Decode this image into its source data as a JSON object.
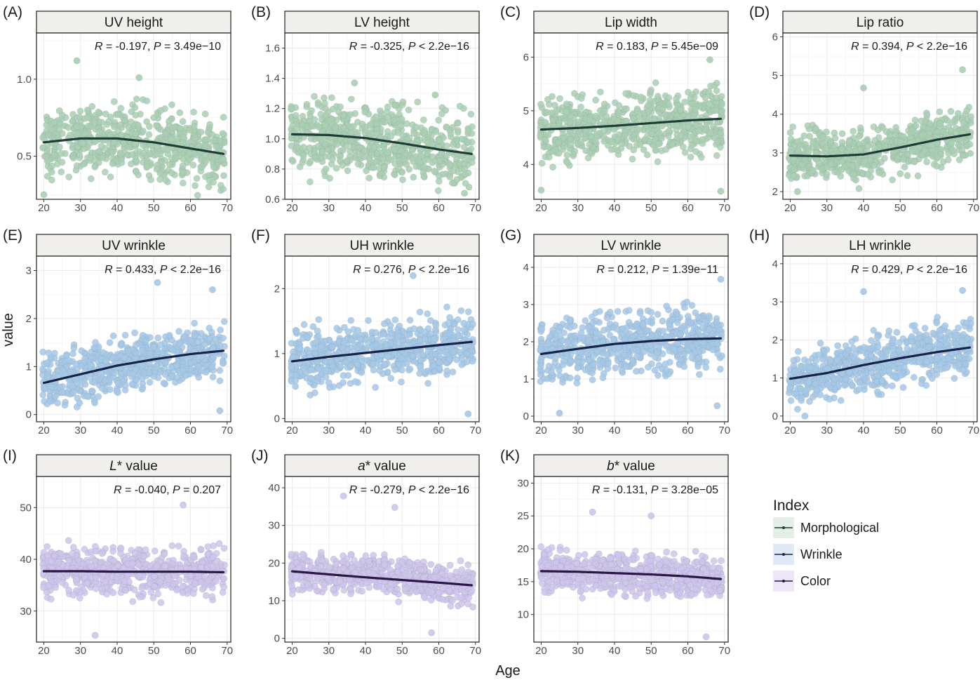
{
  "figure": {
    "xlabel": "Age",
    "ylabel": "value"
  },
  "legend": {
    "title": "Index",
    "entries": [
      {
        "label": "Morphological",
        "point_color": "#a9cfb1",
        "line_color": "#1f3d36",
        "box_color": "#e4efe6"
      },
      {
        "label": "Wrinkle",
        "point_color": "#a5c8e8",
        "line_color": "#15224a",
        "box_color": "#dfeaf6"
      },
      {
        "label": "Color",
        "point_color": "#cfc4ec",
        "line_color": "#2a1745",
        "box_color": "#ece6f8"
      }
    ]
  },
  "chart_data": [
    {
      "type": "scatter",
      "tag": "(A)",
      "title": "UV height",
      "group": "Morphological",
      "xlim": [
        18,
        71
      ],
      "ylim": [
        0.22,
        1.3
      ],
      "yticks": [
        0.5,
        1.0
      ],
      "yticklabels": [
        "0.5",
        "1.0"
      ],
      "xticks": [
        20,
        30,
        40,
        50,
        60,
        70
      ],
      "stat": {
        "r": "-0.197",
        "p": "3.49e−10",
        "p_op": "="
      },
      "smooth": {
        "x": [
          20,
          30,
          40,
          50,
          60,
          69
        ],
        "y": [
          0.59,
          0.615,
          0.615,
          0.59,
          0.55,
          0.515
        ]
      },
      "points": {
        "n": 650,
        "x_range": [
          20,
          69
        ],
        "center": [
          0.59,
          0.615,
          0.615,
          0.59,
          0.55,
          0.515
        ],
        "spread": 0.2
      },
      "outliers": [
        [
          29,
          1.12
        ],
        [
          46,
          1.01
        ],
        [
          20,
          0.25
        ]
      ]
    },
    {
      "type": "scatter",
      "tag": "(B)",
      "title": "LV height",
      "group": "Morphological",
      "xlim": [
        18,
        71
      ],
      "ylim": [
        0.6,
        1.7
      ],
      "yticks": [
        0.6,
        0.8,
        1.0,
        1.2,
        1.4,
        1.6
      ],
      "yticklabels": [
        "0.6",
        "0.8",
        "1.0",
        "1.2",
        "1.4",
        "1.6"
      ],
      "xticks": [
        20,
        30,
        40,
        50,
        60,
        70
      ],
      "stat": {
        "r": "-0.325",
        "p": "2.2e−16",
        "p_op": "<"
      },
      "smooth": {
        "x": [
          20,
          30,
          40,
          50,
          60,
          69
        ],
        "y": [
          1.03,
          1.025,
          1.005,
          0.97,
          0.93,
          0.9
        ]
      },
      "points": {
        "n": 650,
        "x_range": [
          20,
          69
        ],
        "center": [
          1.03,
          1.025,
          1.005,
          0.97,
          0.93,
          0.9
        ],
        "spread": 0.21
      },
      "outliers": [
        [
          37,
          1.37
        ],
        [
          59,
          1.29
        ],
        [
          67,
          0.64
        ]
      ]
    },
    {
      "type": "scatter",
      "tag": "(C)",
      "title": "Lip width",
      "group": "Morphological",
      "xlim": [
        18,
        71
      ],
      "ylim": [
        3.35,
        6.45
      ],
      "yticks": [
        4,
        5,
        6
      ],
      "yticklabels": [
        "4",
        "5",
        "6"
      ],
      "xticks": [
        20,
        30,
        40,
        50,
        60,
        70
      ],
      "stat": {
        "r": "0.183",
        "p": "5.45e−09",
        "p_op": "="
      },
      "smooth": {
        "x": [
          20,
          30,
          40,
          50,
          60,
          69
        ],
        "y": [
          4.65,
          4.68,
          4.72,
          4.77,
          4.82,
          4.85
        ]
      },
      "points": {
        "n": 650,
        "x_range": [
          20,
          69
        ],
        "center": [
          4.65,
          4.68,
          4.72,
          4.77,
          4.82,
          4.85
        ],
        "spread": 0.55
      },
      "outliers": [
        [
          66,
          5.95
        ],
        [
          20,
          3.52
        ],
        [
          69,
          3.5
        ]
      ]
    },
    {
      "type": "scatter",
      "tag": "(D)",
      "title": "Lip ratio",
      "group": "Morphological",
      "xlim": [
        18,
        71
      ],
      "ylim": [
        1.8,
        6.1
      ],
      "yticks": [
        2,
        3,
        4,
        5,
        6
      ],
      "yticklabels": [
        "2",
        "3",
        "4",
        "5",
        "6"
      ],
      "xticks": [
        20,
        30,
        40,
        50,
        60,
        70
      ],
      "stat": {
        "r": "0.394",
        "p": "2.2e−16",
        "p_op": "<"
      },
      "smooth": {
        "x": [
          20,
          30,
          40,
          50,
          60,
          69
        ],
        "y": [
          2.93,
          2.91,
          2.96,
          3.14,
          3.34,
          3.48
        ]
      },
      "points": {
        "n": 650,
        "x_range": [
          20,
          69
        ],
        "center": [
          2.93,
          2.91,
          2.96,
          3.14,
          3.34,
          3.48
        ],
        "spread": 0.6
      },
      "outliers": [
        [
          67,
          5.15
        ],
        [
          40,
          4.68
        ],
        [
          22,
          2.0
        ]
      ]
    },
    {
      "type": "scatter",
      "tag": "(E)",
      "title": "UV wrinkle",
      "group": "Wrinkle",
      "xlim": [
        18,
        71
      ],
      "ylim": [
        -0.15,
        3.3
      ],
      "yticks": [
        0,
        1,
        2,
        3
      ],
      "yticklabels": [
        "0",
        "1",
        "2",
        "3"
      ],
      "xticks": [
        20,
        30,
        40,
        50,
        60,
        70
      ],
      "stat": {
        "r": "0.433",
        "p": "2.2e−16",
        "p_op": "<"
      },
      "smooth": {
        "x": [
          20,
          30,
          40,
          50,
          60,
          69
        ],
        "y": [
          0.66,
          0.84,
          1.02,
          1.15,
          1.26,
          1.33
        ]
      },
      "points": {
        "n": 650,
        "x_range": [
          20,
          69
        ],
        "center": [
          0.66,
          0.84,
          1.02,
          1.15,
          1.26,
          1.33
        ],
        "spread": 0.52
      },
      "outliers": [
        [
          51,
          2.75
        ],
        [
          66,
          2.6
        ],
        [
          68,
          0.08
        ]
      ]
    },
    {
      "type": "scatter",
      "tag": "(F)",
      "title": "UH wrinkle",
      "group": "Wrinkle",
      "xlim": [
        18,
        71
      ],
      "ylim": [
        -0.05,
        2.5
      ],
      "yticks": [
        0,
        1,
        2
      ],
      "yticklabels": [
        "0",
        "1",
        "2"
      ],
      "xticks": [
        20,
        30,
        40,
        50,
        60,
        70
      ],
      "stat": {
        "r": "0.276",
        "p": "2.2e−16",
        "p_op": "<"
      },
      "smooth": {
        "x": [
          20,
          30,
          40,
          50,
          60,
          69
        ],
        "y": [
          0.88,
          0.95,
          1.01,
          1.07,
          1.13,
          1.18
        ]
      },
      "points": {
        "n": 650,
        "x_range": [
          20,
          69
        ],
        "center": [
          0.88,
          0.95,
          1.01,
          1.07,
          1.13,
          1.18
        ],
        "spread": 0.4
      },
      "outliers": [
        [
          53,
          2.2
        ],
        [
          68,
          0.07
        ]
      ]
    },
    {
      "type": "scatter",
      "tag": "(G)",
      "title": "LV wrinkle",
      "group": "Wrinkle",
      "xlim": [
        18,
        71
      ],
      "ylim": [
        -0.15,
        4.3
      ],
      "yticks": [
        0,
        1,
        2,
        3,
        4
      ],
      "yticklabels": [
        "0",
        "1",
        "2",
        "3",
        "4"
      ],
      "xticks": [
        20,
        30,
        40,
        50,
        60,
        70
      ],
      "stat": {
        "r": "0.212",
        "p": "1.39e−11",
        "p_op": "="
      },
      "smooth": {
        "x": [
          20,
          30,
          40,
          50,
          60,
          69
        ],
        "y": [
          1.67,
          1.81,
          1.94,
          2.02,
          2.07,
          2.09
        ]
      },
      "points": {
        "n": 650,
        "x_range": [
          20,
          69
        ],
        "center": [
          1.67,
          1.81,
          1.94,
          2.02,
          2.07,
          2.09
        ],
        "spread": 0.72
      },
      "outliers": [
        [
          69,
          3.68
        ],
        [
          25,
          0.08
        ],
        [
          68,
          0.28
        ]
      ]
    },
    {
      "type": "scatter",
      "tag": "(H)",
      "title": "LH wrinkle",
      "group": "Wrinkle",
      "xlim": [
        18,
        71
      ],
      "ylim": [
        -0.15,
        4.2
      ],
      "yticks": [
        0,
        1,
        2,
        3,
        4
      ],
      "yticklabels": [
        "0",
        "1",
        "2",
        "3",
        "4"
      ],
      "xticks": [
        20,
        30,
        40,
        50,
        60,
        70
      ],
      "stat": {
        "r": "0.429",
        "p": "2.2e−16",
        "p_op": "<"
      },
      "smooth": {
        "x": [
          20,
          30,
          40,
          50,
          60,
          69
        ],
        "y": [
          0.98,
          1.13,
          1.34,
          1.52,
          1.68,
          1.8
        ]
      },
      "points": {
        "n": 650,
        "x_range": [
          20,
          69
        ],
        "center": [
          0.98,
          1.13,
          1.34,
          1.52,
          1.68,
          1.8
        ],
        "spread": 0.62
      },
      "outliers": [
        [
          40,
          3.27
        ],
        [
          67,
          3.3
        ],
        [
          24,
          0.0
        ]
      ]
    },
    {
      "type": "scatter",
      "tag": "(I)",
      "title": "L* value",
      "title_italic": "L",
      "title_rest": "* value",
      "group": "Color",
      "xlim": [
        18,
        71
      ],
      "ylim": [
        24,
        56
      ],
      "yticks": [
        30,
        40,
        50
      ],
      "yticklabels": [
        "30",
        "40",
        "50"
      ],
      "xticks": [
        20,
        30,
        40,
        50,
        60,
        70
      ],
      "stat": {
        "r": "-0.040",
        "p": "0.207",
        "p_op": "="
      },
      "smooth": {
        "x": [
          20,
          30,
          40,
          50,
          60,
          69
        ],
        "y": [
          37.7,
          37.7,
          37.6,
          37.6,
          37.6,
          37.5
        ]
      },
      "points": {
        "n": 650,
        "x_range": [
          20,
          69
        ],
        "center": [
          37.7,
          37.7,
          37.6,
          37.6,
          37.6,
          37.5
        ],
        "spread": 4.3
      },
      "outliers": [
        [
          58,
          50.5
        ],
        [
          34,
          25.3
        ]
      ]
    },
    {
      "type": "scatter",
      "tag": "(J)",
      "title": "a* value",
      "title_italic": "a",
      "title_rest": "* value",
      "group": "Color",
      "xlim": [
        18,
        71
      ],
      "ylim": [
        -1,
        43
      ],
      "yticks": [
        0,
        10,
        20,
        30,
        40
      ],
      "yticklabels": [
        "0",
        "10",
        "20",
        "30",
        "40"
      ],
      "xticks": [
        20,
        30,
        40,
        50,
        60,
        70
      ],
      "stat": {
        "r": "-0.279",
        "p": "2.2e−16",
        "p_op": "<"
      },
      "smooth": {
        "x": [
          20,
          30,
          40,
          50,
          60,
          69
        ],
        "y": [
          17.8,
          17.0,
          16.2,
          15.5,
          14.8,
          14.1
        ]
      },
      "points": {
        "n": 650,
        "x_range": [
          20,
          69
        ],
        "center": [
          17.8,
          17.0,
          17.2,
          16.0,
          15.0,
          14.1
        ],
        "spread": 4.5
      },
      "outliers": [
        [
          34,
          37.8
        ],
        [
          48,
          34.8
        ],
        [
          58,
          1.5
        ]
      ]
    },
    {
      "type": "scatter",
      "tag": "(K)",
      "title": "b* value",
      "title_italic": "b",
      "title_rest": "* value",
      "group": "Color",
      "xlim": [
        18,
        71
      ],
      "ylim": [
        5.8,
        31
      ],
      "yticks": [
        10,
        15,
        20,
        25,
        30
      ],
      "yticklabels": [
        "10",
        "15",
        "20",
        "25",
        "30"
      ],
      "xticks": [
        20,
        30,
        40,
        50,
        60,
        70
      ],
      "stat": {
        "r": "-0.131",
        "p": "3.28e−05",
        "p_op": "="
      },
      "smooth": {
        "x": [
          20,
          30,
          40,
          50,
          60,
          69
        ],
        "y": [
          16.6,
          16.5,
          16.3,
          16.1,
          15.8,
          15.4
        ]
      },
      "points": {
        "n": 650,
        "x_range": [
          20,
          69
        ],
        "center": [
          16.6,
          16.5,
          16.3,
          16.1,
          15.8,
          15.4
        ],
        "spread": 2.9
      },
      "outliers": [
        [
          34,
          25.6
        ],
        [
          50,
          25.0
        ],
        [
          65,
          6.6
        ]
      ]
    }
  ]
}
